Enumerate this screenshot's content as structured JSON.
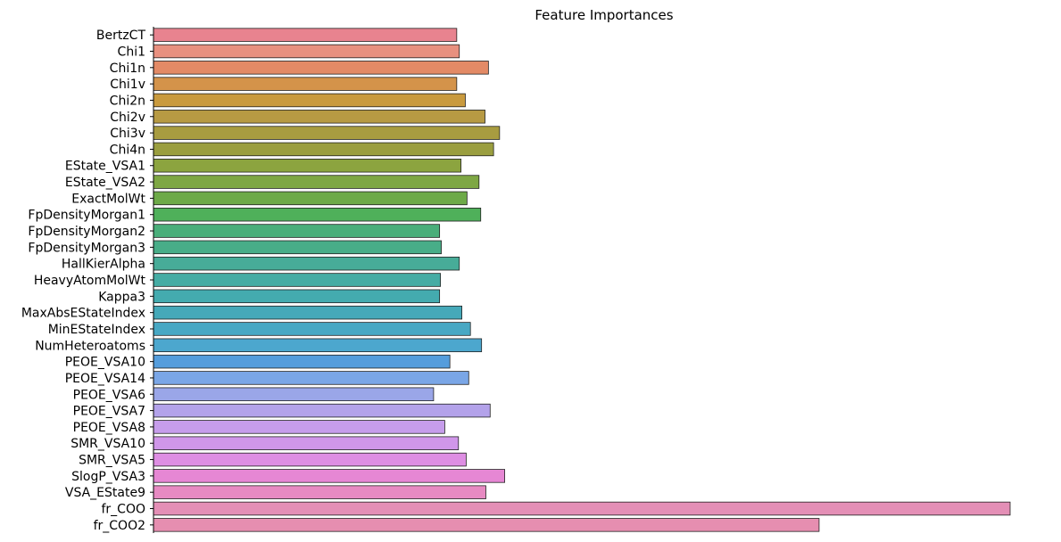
{
  "chart_data": {
    "type": "bar",
    "orientation": "horizontal",
    "title": "Feature Importances",
    "xlabel": "",
    "ylabel": "",
    "xlim": [
      0,
      1
    ],
    "grid": false,
    "legend": "none",
    "categories": [
      "BertzCT",
      "Chi1",
      "Chi1n",
      "Chi1v",
      "Chi2n",
      "Chi2v",
      "Chi3v",
      "Chi4n",
      "EState_VSA1",
      "EState_VSA2",
      "ExactMolWt",
      "FpDensityMorgan1",
      "FpDensityMorgan2",
      "FpDensityMorgan3",
      "HallKierAlpha",
      "HeavyAtomMolWt",
      "Kappa3",
      "MaxAbsEStateIndex",
      "MinEStateIndex",
      "NumHeteroatoms",
      "PEOE_VSA10",
      "PEOE_VSA14",
      "PEOE_VSA6",
      "PEOE_VSA7",
      "PEOE_VSA8",
      "SMR_VSA10",
      "SMR_VSA5",
      "SlogP_VSA3",
      "VSA_EState9",
      "fr_COO",
      "fr_COO2"
    ],
    "values": [
      0.354,
      0.357,
      0.391,
      0.354,
      0.364,
      0.387,
      0.404,
      0.397,
      0.359,
      0.38,
      0.366,
      0.382,
      0.334,
      0.336,
      0.357,
      0.335,
      0.334,
      0.36,
      0.37,
      0.383,
      0.346,
      0.368,
      0.327,
      0.393,
      0.34,
      0.356,
      0.365,
      0.41,
      0.388,
      1.0,
      0.777
    ],
    "colors": [
      "#e8838f",
      "#e8907f",
      "#e38a66",
      "#d4934a",
      "#c99a3e",
      "#b79a43",
      "#a89c40",
      "#9a9e3f",
      "#8ca43f",
      "#7ea744",
      "#6daa48",
      "#4fb05a",
      "#4aae7a",
      "#48ad88",
      "#47ac98",
      "#46aca4",
      "#44abaf",
      "#45a9b9",
      "#48a8c4",
      "#4ca7ce",
      "#559ddc",
      "#7aa6e6",
      "#9aa6e8",
      "#b3a2ea",
      "#c69deb",
      "#d096e9",
      "#de8ee3",
      "#e687d4",
      "#e78ac2",
      "#e48fb6",
      "#e68eb0"
    ]
  }
}
